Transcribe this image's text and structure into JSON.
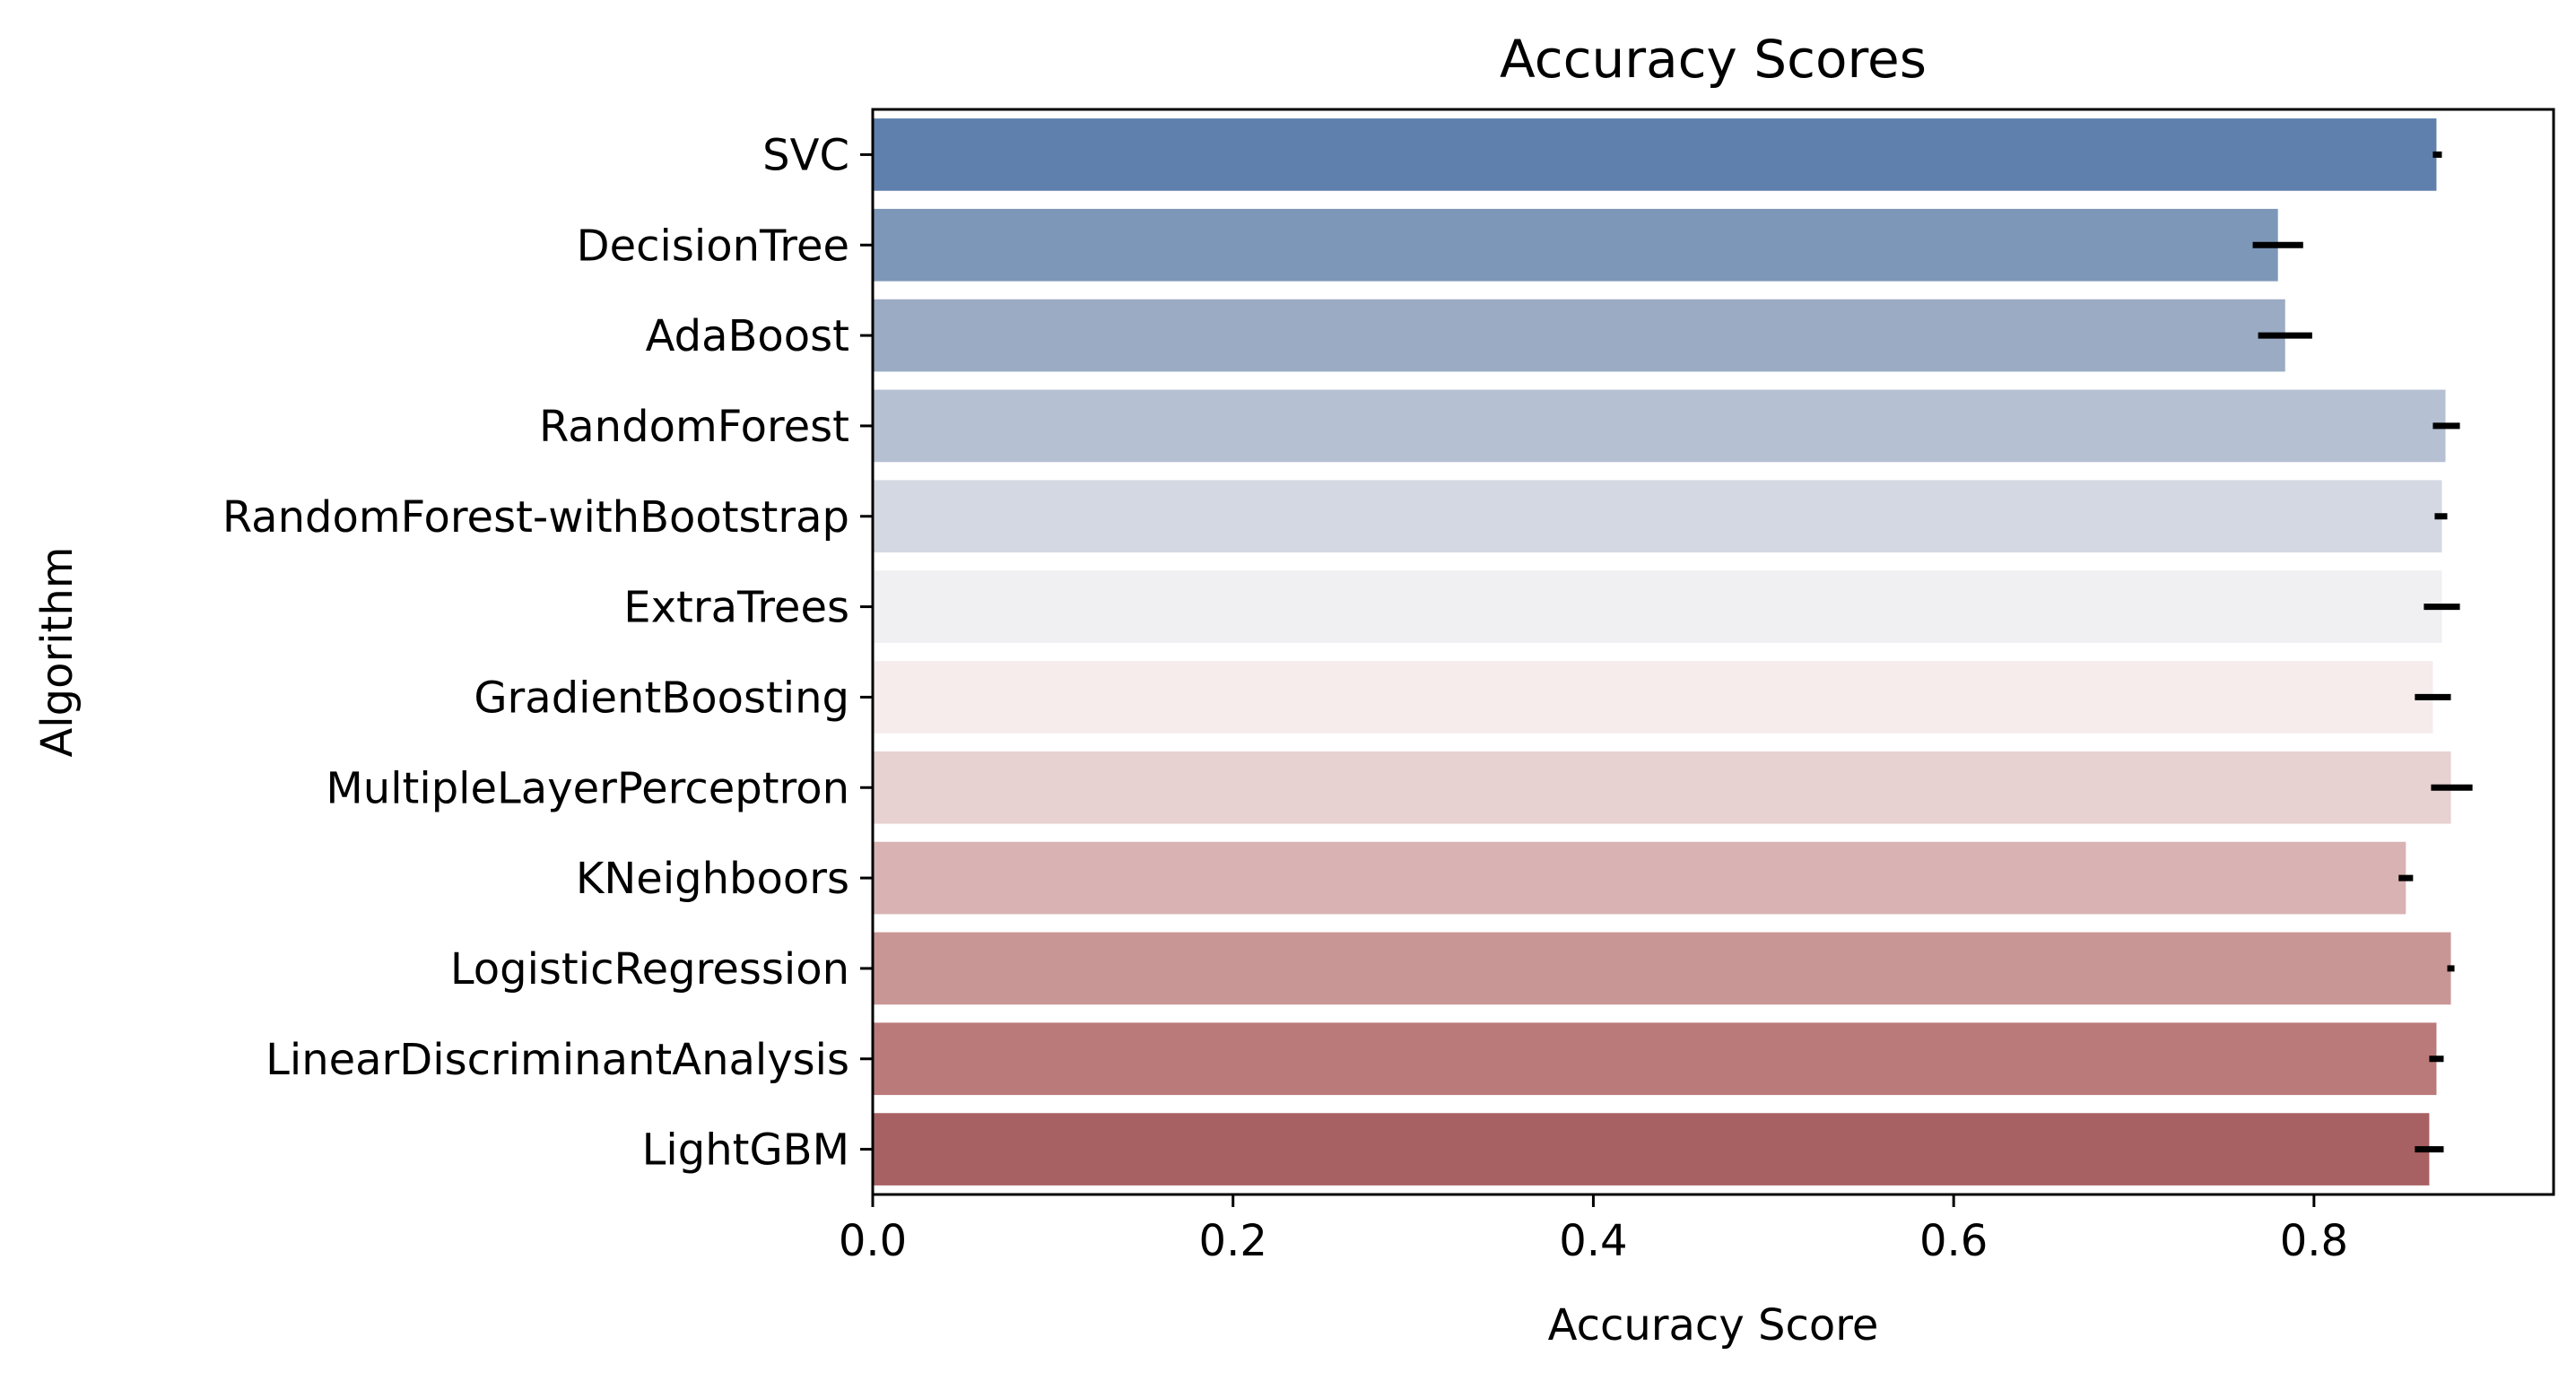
{
  "chart_data": {
    "type": "bar",
    "orientation": "horizontal",
    "title": "Accuracy Scores",
    "xlabel": "Accuracy Score",
    "ylabel": "Algorithm",
    "xlim": [
      0.0,
      0.933
    ],
    "xticks": [
      {
        "value": 0.0,
        "label": "0.0"
      },
      {
        "value": 0.2,
        "label": "0.2"
      },
      {
        "value": 0.4,
        "label": "0.4"
      },
      {
        "value": 0.6,
        "label": "0.6"
      },
      {
        "value": 0.8,
        "label": "0.8"
      }
    ],
    "grid": false,
    "categories": [
      "SVC",
      "DecisionTree",
      "AdaBoost",
      "RandomForest",
      "RandomForest-withBootstrap",
      "ExtraTrees",
      "GradientBoosting",
      "MultipleLayerPerceptron",
      "KNeighboors",
      "LogisticRegression",
      "LinearDiscriminantAnalysis",
      "LightGBM"
    ],
    "values": [
      0.868,
      0.78,
      0.784,
      0.873,
      0.871,
      0.871,
      0.866,
      0.876,
      0.851,
      0.876,
      0.868,
      0.864
    ],
    "error_low": [
      0.866,
      0.766,
      0.769,
      0.866,
      0.867,
      0.861,
      0.856,
      0.865,
      0.847,
      0.874,
      0.864,
      0.856
    ],
    "error_high": [
      0.871,
      0.794,
      0.799,
      0.881,
      0.874,
      0.881,
      0.876,
      0.888,
      0.855,
      0.878,
      0.872,
      0.872
    ],
    "colors": [
      "#5f80ad",
      "#7d97b8",
      "#9aabc3",
      "#b5c0d2",
      "#d4d8e2",
      "#f0eff2",
      "#f6ecec",
      "#e7d1d1",
      "#d9b3b3",
      "#c99696",
      "#bb7a7a",
      "#a86163"
    ]
  }
}
